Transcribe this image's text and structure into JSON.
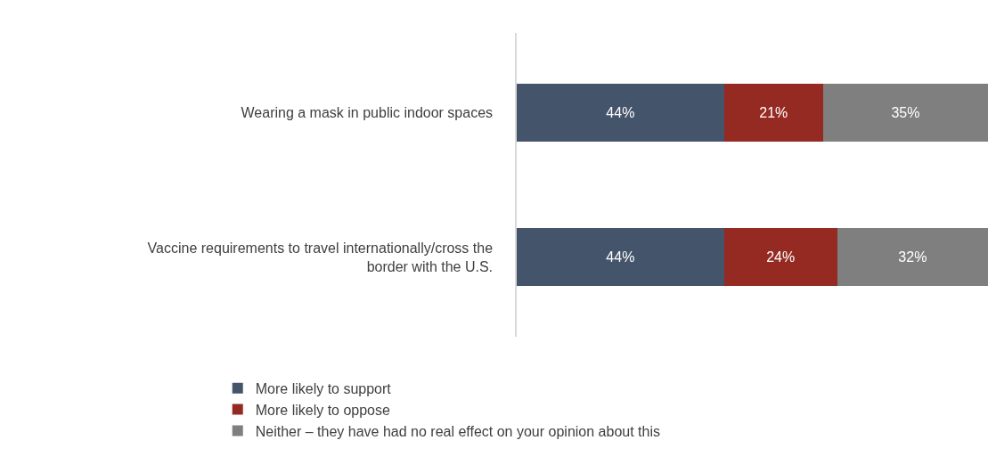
{
  "chart_data": {
    "type": "bar",
    "orientation": "horizontal",
    "stacked": true,
    "categories": [
      "Wearing a mask in public indoor spaces",
      "Vaccine requirements to travel internationally/cross the border with the U.S."
    ],
    "series": [
      {
        "name": "More likely to support",
        "color": "#44546a",
        "values": [
          44,
          44
        ],
        "value_labels": [
          "44%",
          "44%"
        ]
      },
      {
        "name": "More likely to oppose",
        "color": "#952a22",
        "values": [
          21,
          24
        ],
        "value_labels": [
          "21%",
          "24%"
        ]
      },
      {
        "name": "Neither – they have had no real effect on your opinion about this",
        "color": "#7f7f7f",
        "values": [
          35,
          32
        ],
        "value_labels": [
          "35%",
          "32%"
        ]
      }
    ],
    "xlim": [
      0,
      100
    ],
    "tick_labels": "y",
    "grid": false,
    "legend": "bottom"
  }
}
